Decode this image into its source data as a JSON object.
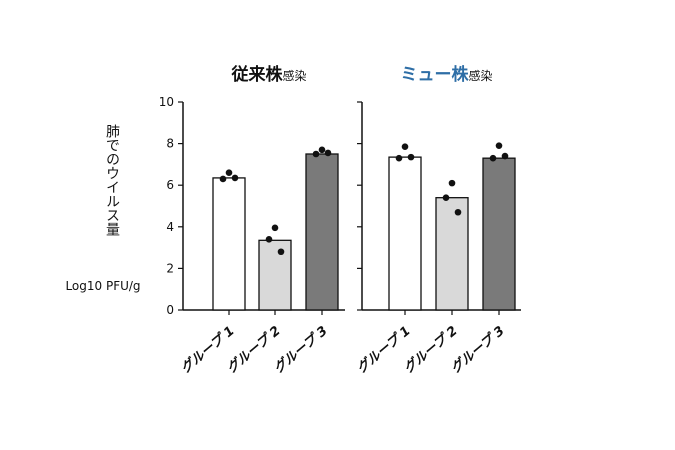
{
  "chart_data": [
    {
      "type": "bar",
      "title": "従来株",
      "title_suffix": "感染",
      "title_color": "#111111",
      "ylabel": "肺でのウイルス量",
      "yunit": "Log10 PFU/g",
      "categories": [
        "グループ 1",
        "グループ 2",
        "グループ 3"
      ],
      "values": [
        6.35,
        3.35,
        7.5
      ],
      "colors": [
        "#ffffff",
        "#d9d9d9",
        "#7a7a7a"
      ],
      "points": [
        [
          6.6,
          6.3,
          6.35
        ],
        [
          3.95,
          3.4,
          2.8
        ],
        [
          7.7,
          7.5,
          7.55
        ]
      ],
      "ylim": [
        0,
        10
      ],
      "yticks": [
        0,
        2,
        4,
        6,
        8,
        10
      ],
      "tick_labels": true
    },
    {
      "type": "bar",
      "title": "ミュー株",
      "title_suffix": "感染",
      "title_color": "#2e6ea6",
      "categories": [
        "グループ 1",
        "グループ 2",
        "グループ 3"
      ],
      "values": [
        7.35,
        5.4,
        7.3
      ],
      "colors": [
        "#ffffff",
        "#d9d9d9",
        "#7a7a7a"
      ],
      "points": [
        [
          7.85,
          7.3,
          7.35
        ],
        [
          6.1,
          5.4,
          4.7
        ],
        [
          7.9,
          7.3,
          7.4
        ]
      ],
      "ylim": [
        0,
        10
      ],
      "yticks": [
        0,
        2,
        4,
        6,
        8,
        10
      ],
      "tick_labels": false
    }
  ]
}
